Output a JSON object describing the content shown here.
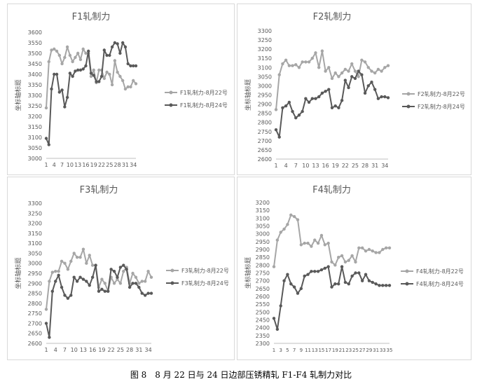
{
  "caption": "图 8　8 月 22 日与 24 日边部压锈精轧 F1-F4 轧制力对比",
  "colors": {
    "series_aug22": "#a6a6a6",
    "series_aug24": "#595959",
    "axis": "#bfbfbf",
    "text": "#595959"
  },
  "chart_data": [
    {
      "type": "line",
      "title": "F1轧制力",
      "ylabel": "坐标轴标题",
      "ylim": [
        3000,
        3600
      ],
      "yticks": [
        3000,
        3050,
        3100,
        3150,
        3200,
        3250,
        3300,
        3350,
        3400,
        3450,
        3500,
        3550,
        3600
      ],
      "xtick_labels": [
        "1",
        "4",
        "7",
        "10",
        "13",
        "16",
        "19",
        "22",
        "25",
        "28",
        "31",
        "34"
      ],
      "x": [
        1,
        2,
        3,
        4,
        5,
        6,
        7,
        8,
        9,
        10,
        11,
        12,
        13,
        14,
        15,
        16,
        17,
        18,
        19,
        20,
        21,
        22,
        23,
        24,
        25,
        26,
        27,
        28,
        29,
        30,
        31,
        32,
        33,
        34,
        35
      ],
      "series": [
        {
          "name": "F1轧制力-8月22号",
          "values": [
            3240,
            3460,
            3515,
            3520,
            3510,
            3490,
            3450,
            3480,
            3530,
            3490,
            3460,
            3480,
            3500,
            3470,
            3520,
            3500,
            3500,
            3390,
            3420,
            3360,
            3420,
            3420,
            3380,
            3410,
            3400,
            3350,
            3465,
            3410,
            3390,
            3370,
            3330,
            3340,
            3340,
            3370,
            3355
          ]
        },
        {
          "name": "F1轧制力-8月24号",
          "values": [
            3095,
            3065,
            3330,
            3400,
            3400,
            3315,
            3325,
            3245,
            3290,
            3405,
            3390,
            3415,
            3420,
            3420,
            3425,
            3440,
            3510,
            3405,
            3395,
            3365,
            3365,
            3390,
            3515,
            3490,
            3490,
            3530,
            3550,
            3545,
            3500,
            3550,
            3530,
            3450,
            3440,
            3440,
            3440
          ]
        }
      ]
    },
    {
      "type": "line",
      "title": "F2轧制力",
      "ylabel": "坐标轴标题",
      "ylim": [
        2600,
        3300
      ],
      "yticks": [
        2600,
        2650,
        2700,
        2750,
        2800,
        2850,
        2900,
        2950,
        3000,
        3050,
        3100,
        3150,
        3200,
        3250,
        3300
      ],
      "xtick_labels": [
        "1",
        "4",
        "7",
        "10",
        "13",
        "16",
        "19",
        "22",
        "25",
        "28",
        "31",
        "34"
      ],
      "x": [
        1,
        2,
        3,
        4,
        5,
        6,
        7,
        8,
        9,
        10,
        11,
        12,
        13,
        14,
        15,
        16,
        17,
        18,
        19,
        20,
        21,
        22,
        23,
        24,
        25,
        26,
        27,
        28,
        29,
        30,
        31,
        32,
        33,
        34,
        35
      ],
      "series": [
        {
          "name": "F2轧制力-8月22号",
          "values": [
            2870,
            3060,
            3120,
            3140,
            3110,
            3110,
            3115,
            3100,
            3130,
            3130,
            3130,
            3150,
            3180,
            3100,
            3190,
            3080,
            3100,
            3040,
            3070,
            3050,
            3070,
            3090,
            3080,
            3120,
            3080,
            3050,
            3140,
            3130,
            3100,
            3080,
            3070,
            3090,
            3080,
            3100,
            3110
          ]
        },
        {
          "name": "F2轧制力-8月24号",
          "values": [
            2760,
            2720,
            2880,
            2890,
            2910,
            2860,
            2825,
            2840,
            2860,
            2930,
            2910,
            2930,
            2930,
            2940,
            2960,
            2970,
            2980,
            2880,
            2890,
            2880,
            2920,
            3030,
            2990,
            3050,
            3040,
            3080,
            3060,
            2960,
            3000,
            3020,
            2980,
            2930,
            2940,
            2940,
            2935
          ]
        }
      ]
    },
    {
      "type": "line",
      "title": "F3轧制力",
      "ylabel": "坐标轴标题",
      "ylim": [
        2600,
        3300
      ],
      "yticks": [
        2600,
        2650,
        2700,
        2750,
        2800,
        2850,
        2900,
        2950,
        3000,
        3050,
        3100,
        3150,
        3200,
        3250,
        3300
      ],
      "xtick_labels": [
        "1",
        "4",
        "7",
        "10",
        "13",
        "16",
        "19",
        "22",
        "25",
        "28",
        "31",
        "34"
      ],
      "x": [
        1,
        2,
        3,
        4,
        5,
        6,
        7,
        8,
        9,
        10,
        11,
        12,
        13,
        14,
        15,
        16,
        17,
        18,
        19,
        20,
        21,
        22,
        23,
        24,
        25,
        26,
        27,
        28,
        29,
        30,
        31,
        32,
        33,
        34,
        35
      ],
      "series": [
        {
          "name": "F3轧制力-8月22号",
          "values": [
            2770,
            2910,
            2955,
            2960,
            2960,
            3010,
            3000,
            2970,
            3010,
            3050,
            3030,
            3030,
            3070,
            3000,
            3040,
            2990,
            2990,
            2880,
            2920,
            2900,
            2860,
            2930,
            2900,
            2920,
            2900,
            2960,
            2980,
            2900,
            2950,
            2930,
            2900,
            2910,
            2910,
            2960,
            2930
          ]
        },
        {
          "name": "F3轧制力-8月24号",
          "values": [
            2700,
            2630,
            2860,
            2910,
            2940,
            2880,
            2840,
            2825,
            2840,
            2930,
            2910,
            2930,
            2920,
            2910,
            2890,
            2930,
            2990,
            2860,
            2870,
            2860,
            2860,
            2970,
            2960,
            2930,
            2980,
            2990,
            2970,
            2880,
            2900,
            2900,
            2880,
            2850,
            2840,
            2850,
            2850
          ]
        }
      ]
    },
    {
      "type": "line",
      "title": "F4轧制力",
      "ylabel": "坐标轴标题",
      "ylim": [
        2300,
        3200
      ],
      "yticks": [
        2300,
        2350,
        2400,
        2450,
        2500,
        2550,
        2600,
        2650,
        2700,
        2750,
        2800,
        2850,
        2900,
        2950,
        3000,
        3050,
        3100,
        3150,
        3200
      ],
      "xtick_labels": [
        "1",
        "3",
        "5",
        "7",
        "9",
        "11",
        "13",
        "15",
        "17",
        "19",
        "21",
        "23",
        "25",
        "27",
        "29",
        "31",
        "33",
        "35"
      ],
      "x": [
        1,
        2,
        3,
        4,
        5,
        6,
        7,
        8,
        9,
        10,
        11,
        12,
        13,
        14,
        15,
        16,
        17,
        18,
        19,
        20,
        21,
        22,
        23,
        24,
        25,
        26,
        27,
        28,
        29,
        30,
        31,
        32,
        33,
        34,
        35
      ],
      "series": [
        {
          "name": "F4轧制力-8月22号",
          "values": [
            2790,
            2960,
            3010,
            3030,
            3060,
            3120,
            3110,
            3090,
            2930,
            2940,
            2940,
            2920,
            2960,
            2940,
            2990,
            2930,
            2940,
            2820,
            2800,
            2850,
            2860,
            2820,
            2830,
            2860,
            2820,
            2910,
            2910,
            2890,
            2900,
            2890,
            2880,
            2880,
            2900,
            2910,
            2910
          ]
        },
        {
          "name": "F4轧制力-8月24号",
          "values": [
            2460,
            2390,
            2540,
            2700,
            2740,
            2680,
            2660,
            2620,
            2650,
            2730,
            2740,
            2760,
            2760,
            2760,
            2770,
            2780,
            2790,
            2660,
            2680,
            2680,
            2790,
            2690,
            2680,
            2730,
            2750,
            2750,
            2700,
            2740,
            2700,
            2690,
            2680,
            2670,
            2670,
            2670,
            2670
          ]
        }
      ]
    }
  ]
}
